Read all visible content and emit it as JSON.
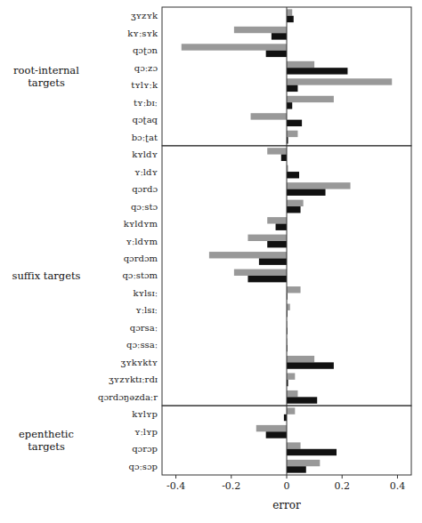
{
  "chart_data": [
    {
      "type": "bar",
      "orientation": "horizontal",
      "title": "root-internal\ntargets",
      "categories": [
        "ʒʏzʏk",
        "kʏːsʏk",
        "qɔʈɔn",
        "qɔːzɔ",
        "tʏlʏːk",
        "tʏːbɪː",
        "qɔʈaq",
        "bɔːʈat"
      ],
      "series": [
        {
          "color": "#999999",
          "values": [
            0.02,
            -0.19,
            -0.38,
            0.1,
            0.38,
            0.17,
            -0.13,
            0.04
          ]
        },
        {
          "color": "#111111",
          "values": [
            0.025,
            -0.055,
            -0.075,
            0.22,
            0.04,
            0.02,
            0.055,
            0.005
          ]
        }
      ],
      "xlim": [
        -0.45,
        0.45
      ],
      "tick_labels": "y"
    },
    {
      "type": "bar",
      "orientation": "horizontal",
      "title": "suffix targets",
      "categories": [
        "kʏldʏ",
        "ʏːldʏ",
        "qɔrdɔ",
        "qɔːstɔ",
        "kʏldʏm",
        "ʏːldʏm",
        "qɔrdɔm",
        "qɔːstɔm",
        "kʏlsɪː",
        "ʏːlsɪː",
        "qɔrsaː",
        "qɔːssaː",
        "ʒʏkʏktʏ",
        "ʒʏzʏktɪːrdɪ",
        "qɔrdɔŋəzdaːr"
      ],
      "series": [
        {
          "color": "#999999",
          "values": [
            -0.07,
            0.005,
            0.23,
            0.06,
            -0.07,
            -0.14,
            -0.28,
            -0.19,
            0.05,
            0.012,
            0.002,
            0.002,
            0.1,
            0.03,
            0.04
          ]
        },
        {
          "color": "#111111",
          "values": [
            -0.02,
            0.045,
            0.14,
            0.05,
            -0.04,
            -0.07,
            -0.1,
            -0.14,
            0.002,
            0.002,
            0.002,
            0.002,
            0.17,
            0.005,
            0.11
          ]
        }
      ],
      "xlim": [
        -0.45,
        0.45
      ],
      "tick_labels": "y"
    },
    {
      "type": "bar",
      "orientation": "horizontal",
      "title": "epenthetic\ntargets",
      "categories": [
        "kʏlʏp",
        "ʏːlʏp",
        "qɔrɔp",
        "qɔːsɔp"
      ],
      "series": [
        {
          "color": "#999999",
          "values": [
            0.03,
            -0.11,
            0.05,
            0.12
          ]
        },
        {
          "color": "#111111",
          "values": [
            -0.01,
            -0.075,
            0.18,
            0.07
          ]
        }
      ],
      "xlim": [
        -0.45,
        0.45
      ],
      "xticks": [
        -0.4,
        -0.2,
        0,
        0.2,
        0.4
      ],
      "xlabel": "error"
    }
  ]
}
